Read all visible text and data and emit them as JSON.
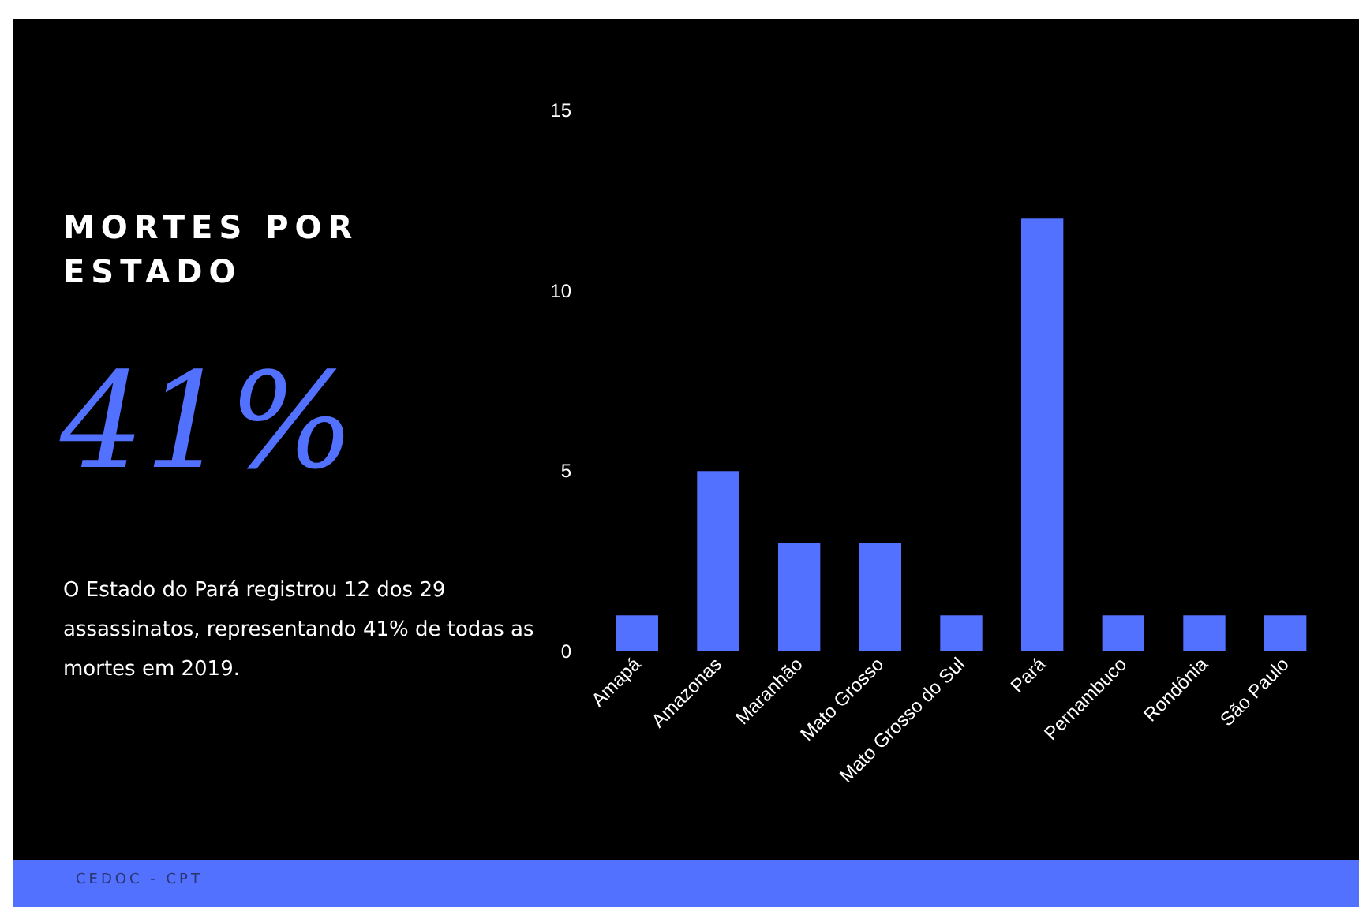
{
  "chart_data": {
    "type": "bar",
    "title": "MORTES POR ESTADO",
    "annotations": [
      "41%",
      "O Estado do Pará registrou 12 dos 29 assassinatos, representando 41% de todas as mortes em 2019.",
      "CEDOC - CPT"
    ],
    "categories": [
      "Amapá",
      "Amazonas",
      "Maranhão",
      "Mato Grosso",
      "Mato Grosso do Sul",
      "Pará",
      "Pernambuco",
      "Rondônia",
      "São Paulo"
    ],
    "values": [
      1,
      5,
      3,
      3,
      1,
      12,
      1,
      1,
      1
    ],
    "color": "#5271ff",
    "ylim": [
      0,
      15
    ],
    "yticks": [
      0,
      5,
      10,
      15
    ],
    "grid": false
  }
}
